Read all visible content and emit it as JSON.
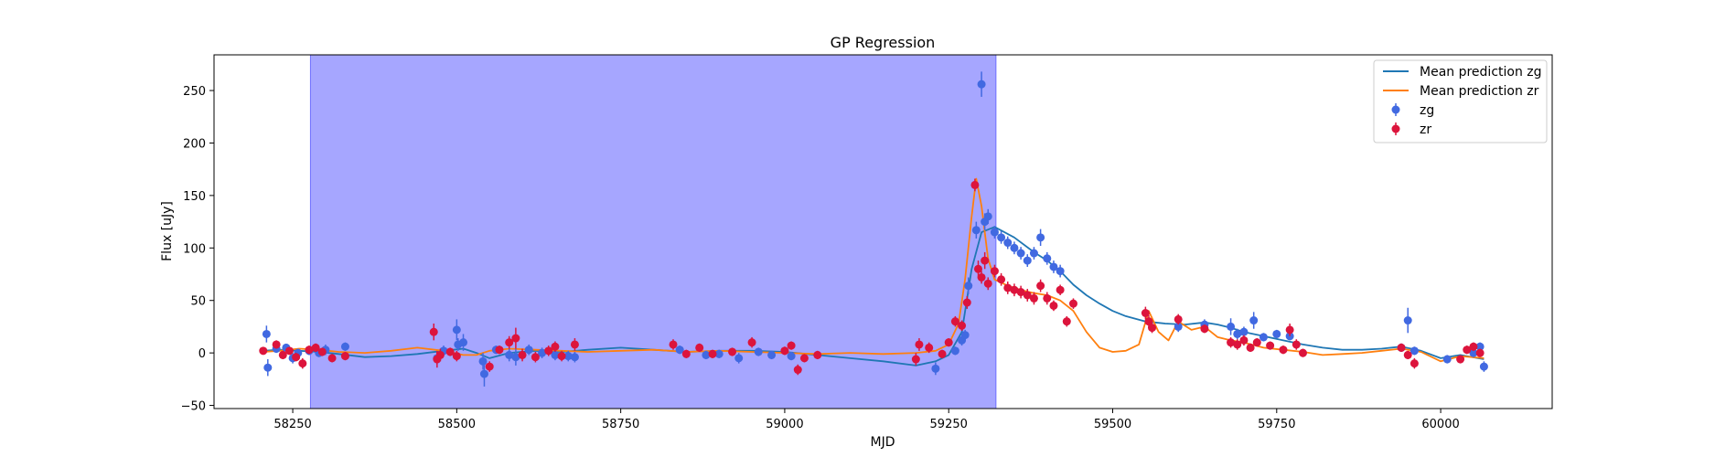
{
  "chart_data": {
    "type": "scatter",
    "title": "GP Regression",
    "xlabel": "MJD",
    "ylabel": "Flux [uJy]",
    "xlim": [
      58130,
      60170
    ],
    "ylim": [
      -53,
      284
    ],
    "xticks": [
      58250,
      58500,
      58750,
      59000,
      59250,
      59500,
      59750,
      60000
    ],
    "yticks": [
      -50,
      0,
      50,
      100,
      150,
      200,
      250
    ],
    "grid": false,
    "legend_position": "top-right",
    "shaded_region": {
      "x": [
        58277,
        59322
      ],
      "color": "#a6a6ff"
    },
    "colors": {
      "zg_line": "#1f77b4",
      "zr_line": "#ff7f0e",
      "zg_points": "#4169e1",
      "zr_points": "#dc143c"
    },
    "lines": [
      {
        "name": "Mean prediction zg",
        "color": "#1f77b4",
        "x": [
          58205,
          58230,
          58260,
          58290,
          58320,
          58360,
          58400,
          58440,
          58480,
          58510,
          58530,
          58550,
          58580,
          58620,
          58660,
          58700,
          58750,
          58800,
          58850,
          58900,
          58950,
          59000,
          59050,
          59100,
          59150,
          59200,
          59230,
          59250,
          59270,
          59285,
          59300,
          59320,
          59350,
          59380,
          59400,
          59420,
          59440,
          59460,
          59480,
          59500,
          59520,
          59550,
          59580,
          59610,
          59640,
          59660,
          59680,
          59700,
          59730,
          59760,
          59790,
          59820,
          59850,
          59880,
          59910,
          59940,
          59970,
          60000,
          60030,
          60066
        ],
        "y": [
          2,
          3,
          2,
          1,
          -1,
          -4,
          -3,
          -1,
          2,
          4,
          0,
          -5,
          0,
          2,
          1,
          3,
          5,
          3,
          1,
          2,
          2,
          1,
          -2,
          -5,
          -8,
          -12,
          -8,
          -2,
          20,
          80,
          115,
          120,
          110,
          96,
          88,
          78,
          65,
          55,
          47,
          40,
          35,
          30,
          28,
          27,
          29,
          27,
          24,
          20,
          16,
          12,
          8,
          5,
          3,
          3,
          4,
          6,
          2,
          -5,
          -2,
          -6
        ]
      },
      {
        "name": "Mean prediction zr",
        "color": "#ff7f0e",
        "x": [
          58205,
          58230,
          58260,
          58290,
          58320,
          58360,
          58400,
          58440,
          58480,
          58510,
          58530,
          58550,
          58580,
          58620,
          58660,
          58700,
          58750,
          58800,
          58850,
          58900,
          58950,
          59000,
          59050,
          59100,
          59150,
          59200,
          59230,
          59250,
          59265,
          59275,
          59285,
          59292,
          59300,
          59310,
          59320,
          59340,
          59360,
          59380,
          59400,
          59420,
          59440,
          59460,
          59480,
          59500,
          59520,
          59540,
          59555,
          59570,
          59585,
          59600,
          59620,
          59640,
          59660,
          59680,
          59700,
          59730,
          59760,
          59790,
          59820,
          59850,
          59880,
          59910,
          59940,
          59970,
          60000,
          60030,
          60066
        ],
        "y": [
          1,
          2,
          4,
          3,
          1,
          0,
          2,
          5,
          2,
          -2,
          -2,
          2,
          4,
          3,
          2,
          1,
          2,
          3,
          1,
          2,
          1,
          0,
          -1,
          0,
          -1,
          0,
          2,
          8,
          28,
          70,
          130,
          166,
          140,
          90,
          70,
          64,
          60,
          57,
          55,
          50,
          40,
          20,
          5,
          1,
          2,
          8,
          40,
          20,
          12,
          30,
          22,
          25,
          15,
          12,
          10,
          5,
          3,
          1,
          -2,
          -1,
          0,
          2,
          4,
          1,
          -8,
          -3,
          -5
        ]
      }
    ],
    "series": [
      {
        "name": "zg",
        "color": "#4169e1",
        "points": [
          [
            58210,
            18,
            8
          ],
          [
            58212,
            -14,
            8
          ],
          [
            58225,
            4,
            4
          ],
          [
            58240,
            5,
            3
          ],
          [
            58250,
            -5,
            5
          ],
          [
            58258,
            0,
            4
          ],
          [
            58275,
            2,
            4
          ],
          [
            58290,
            0,
            4
          ],
          [
            58300,
            3,
            5
          ],
          [
            58330,
            6,
            4
          ],
          [
            58470,
            -5,
            6
          ],
          [
            58480,
            2,
            5
          ],
          [
            58500,
            22,
            10
          ],
          [
            58502,
            8,
            6
          ],
          [
            58510,
            10,
            8
          ],
          [
            58540,
            -8,
            8
          ],
          [
            58542,
            -20,
            12
          ],
          [
            58560,
            3,
            4
          ],
          [
            58580,
            -2,
            6
          ],
          [
            58590,
            -4,
            8
          ],
          [
            58610,
            3,
            5
          ],
          [
            58630,
            0,
            5
          ],
          [
            58650,
            -2,
            5
          ],
          [
            58670,
            -3,
            5
          ],
          [
            58680,
            -4,
            5
          ],
          [
            58840,
            3,
            4
          ],
          [
            58880,
            -2,
            4
          ],
          [
            58900,
            -1,
            4
          ],
          [
            58930,
            -5,
            5
          ],
          [
            58960,
            1,
            4
          ],
          [
            58980,
            -2,
            4
          ],
          [
            59010,
            -3,
            4
          ],
          [
            59230,
            -15,
            6
          ],
          [
            59260,
            2,
            4
          ],
          [
            59270,
            12,
            5
          ],
          [
            59275,
            17,
            5
          ],
          [
            59280,
            64,
            8
          ],
          [
            59292,
            117,
            8
          ],
          [
            59300,
            256,
            12
          ],
          [
            59305,
            125,
            8
          ],
          [
            59310,
            130,
            7
          ],
          [
            59320,
            115,
            6
          ],
          [
            59330,
            110,
            6
          ],
          [
            59340,
            105,
            6
          ],
          [
            59350,
            100,
            6
          ],
          [
            59360,
            95,
            6
          ],
          [
            59370,
            88,
            6
          ],
          [
            59380,
            95,
            6
          ],
          [
            59390,
            110,
            8
          ],
          [
            59400,
            90,
            6
          ],
          [
            59410,
            82,
            6
          ],
          [
            59420,
            78,
            6
          ],
          [
            59600,
            25,
            5
          ],
          [
            59640,
            27,
            5
          ],
          [
            59680,
            25,
            8
          ],
          [
            59690,
            18,
            5
          ],
          [
            59700,
            20,
            5
          ],
          [
            59715,
            31,
            8
          ],
          [
            59730,
            15,
            4
          ],
          [
            59750,
            18,
            4
          ],
          [
            59770,
            16,
            4
          ],
          [
            59940,
            5,
            4
          ],
          [
            59950,
            31,
            12
          ],
          [
            59960,
            2,
            4
          ],
          [
            60010,
            -6,
            4
          ],
          [
            60050,
            0,
            4
          ],
          [
            60060,
            6,
            4
          ],
          [
            60066,
            -13,
            5
          ]
        ]
      },
      {
        "name": "zr",
        "color": "#dc143c",
        "points": [
          [
            58205,
            2,
            3
          ],
          [
            58225,
            8,
            4
          ],
          [
            58235,
            -2,
            4
          ],
          [
            58245,
            2,
            3
          ],
          [
            58255,
            -4,
            4
          ],
          [
            58265,
            -10,
            5
          ],
          [
            58275,
            3,
            4
          ],
          [
            58285,
            5,
            4
          ],
          [
            58295,
            1,
            4
          ],
          [
            58310,
            -5,
            4
          ],
          [
            58330,
            -3,
            4
          ],
          [
            58465,
            20,
            8
          ],
          [
            58470,
            -6,
            8
          ],
          [
            58475,
            -2,
            6
          ],
          [
            58490,
            1,
            4
          ],
          [
            58500,
            -3,
            5
          ],
          [
            58550,
            -13,
            5
          ],
          [
            58565,
            3,
            4
          ],
          [
            58580,
            10,
            6
          ],
          [
            58590,
            14,
            10
          ],
          [
            58600,
            -2,
            6
          ],
          [
            58620,
            -4,
            5
          ],
          [
            58640,
            2,
            5
          ],
          [
            58650,
            6,
            5
          ],
          [
            58660,
            -3,
            5
          ],
          [
            58680,
            8,
            6
          ],
          [
            58830,
            8,
            5
          ],
          [
            58850,
            -1,
            4
          ],
          [
            58870,
            5,
            4
          ],
          [
            58890,
            -1,
            4
          ],
          [
            58920,
            1,
            4
          ],
          [
            58950,
            10,
            5
          ],
          [
            59000,
            2,
            4
          ],
          [
            59010,
            7,
            4
          ],
          [
            59020,
            -16,
            5
          ],
          [
            59030,
            -5,
            4
          ],
          [
            59050,
            -2,
            4
          ],
          [
            59200,
            -6,
            6
          ],
          [
            59205,
            8,
            6
          ],
          [
            59220,
            5,
            5
          ],
          [
            59240,
            -1,
            4
          ],
          [
            59250,
            10,
            4
          ],
          [
            59260,
            30,
            5
          ],
          [
            59270,
            26,
            5
          ],
          [
            59278,
            48,
            6
          ],
          [
            59290,
            160,
            6
          ],
          [
            59295,
            80,
            8
          ],
          [
            59300,
            72,
            6
          ],
          [
            59305,
            88,
            8
          ],
          [
            59310,
            66,
            6
          ],
          [
            59320,
            78,
            6
          ],
          [
            59330,
            70,
            6
          ],
          [
            59340,
            62,
            6
          ],
          [
            59350,
            60,
            6
          ],
          [
            59360,
            58,
            6
          ],
          [
            59370,
            55,
            6
          ],
          [
            59380,
            52,
            6
          ],
          [
            59390,
            64,
            6
          ],
          [
            59400,
            52,
            6
          ],
          [
            59410,
            45,
            5
          ],
          [
            59420,
            60,
            5
          ],
          [
            59430,
            30,
            5
          ],
          [
            59440,
            47,
            5
          ],
          [
            59550,
            38,
            6
          ],
          [
            59555,
            30,
            6
          ],
          [
            59560,
            24,
            5
          ],
          [
            59600,
            32,
            5
          ],
          [
            59640,
            23,
            4
          ],
          [
            59680,
            10,
            5
          ],
          [
            59690,
            8,
            5
          ],
          [
            59700,
            12,
            5
          ],
          [
            59710,
            5,
            4
          ],
          [
            59720,
            10,
            4
          ],
          [
            59740,
            7,
            4
          ],
          [
            59760,
            3,
            4
          ],
          [
            59770,
            22,
            6
          ],
          [
            59780,
            8,
            5
          ],
          [
            59790,
            0,
            4
          ],
          [
            59940,
            5,
            4
          ],
          [
            59950,
            -2,
            4
          ],
          [
            59960,
            -10,
            5
          ],
          [
            60030,
            -6,
            4
          ],
          [
            60040,
            3,
            4
          ],
          [
            60050,
            6,
            4
          ],
          [
            60060,
            0,
            4
          ]
        ]
      }
    ]
  }
}
